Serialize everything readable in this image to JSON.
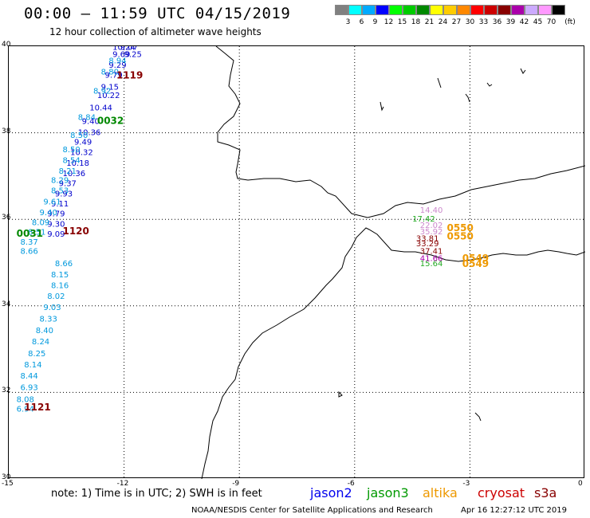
{
  "header": {
    "title": "00:00 – 11:59 UTC 04/15/2019",
    "subtitle": "12 hour collection of altimeter wave heights"
  },
  "color_scale": {
    "unit": "(ft)",
    "bins": [
      {
        "label": "3",
        "color": "#808080"
      },
      {
        "label": "6",
        "color": "#00ffff"
      },
      {
        "label": "9",
        "color": "#00aaff"
      },
      {
        "label": "12",
        "color": "#0000ff"
      },
      {
        "label": "15",
        "color": "#00ff00"
      },
      {
        "label": "18",
        "color": "#00cc00"
      },
      {
        "label": "21",
        "color": "#008800"
      },
      {
        "label": "24",
        "color": "#ffff00"
      },
      {
        "label": "27",
        "color": "#ffcc00"
      },
      {
        "label": "30",
        "color": "#ff8800"
      },
      {
        "label": "33",
        "color": "#ff0000"
      },
      {
        "label": "36",
        "color": "#cc0000"
      },
      {
        "label": "39",
        "color": "#880000"
      },
      {
        "label": "42",
        "color": "#aa00aa"
      },
      {
        "label": "45",
        "color": "#ccaaff"
      },
      {
        "label": "70",
        "color": "#ff99ff"
      },
      {
        "label": "",
        "color": "#000000"
      }
    ]
  },
  "map": {
    "lon_range": [
      -15,
      0
    ],
    "lat_range": [
      30,
      40
    ],
    "x_ticks": [
      "-15",
      "-12",
      "-9",
      "-6",
      "-3",
      "0"
    ],
    "y_ticks": [
      "40",
      "38",
      "36",
      "34",
      "32",
      "30"
    ]
  },
  "tracks": [
    {
      "satellite": "jason2",
      "color": "#0000cc",
      "points": [
        {
          "lon": -12.3,
          "lat": 39.92,
          "v": "10.24"
        },
        {
          "lon": -12.1,
          "lat": 39.92,
          "v": "9.07"
        },
        {
          "lon": -12.3,
          "lat": 39.75,
          "v": "9.69"
        },
        {
          "lon": -12.0,
          "lat": 39.75,
          "v": "9.25"
        },
        {
          "lon": -12.4,
          "lat": 39.5,
          "v": "9.29"
        },
        {
          "lon": -12.5,
          "lat": 39.27,
          "v": "9.79"
        },
        {
          "lon": -12.6,
          "lat": 39.0,
          "v": "9.15"
        },
        {
          "lon": -12.7,
          "lat": 38.8,
          "v": "10.22"
        },
        {
          "lon": -12.9,
          "lat": 38.52,
          "v": "10.44"
        },
        {
          "lon": -13.1,
          "lat": 38.2,
          "v": "9.40"
        },
        {
          "lon": -13.2,
          "lat": 37.95,
          "v": "10.36"
        },
        {
          "lon": -13.3,
          "lat": 37.73,
          "v": "9.49"
        },
        {
          "lon": -13.4,
          "lat": 37.49,
          "v": "10.32"
        },
        {
          "lon": -13.5,
          "lat": 37.24,
          "v": "10.18"
        },
        {
          "lon": -13.6,
          "lat": 37.0,
          "v": "10.36"
        },
        {
          "lon": -13.7,
          "lat": 36.77,
          "v": "9.37"
        },
        {
          "lon": -13.8,
          "lat": 36.53,
          "v": "9.93"
        },
        {
          "lon": -13.9,
          "lat": 36.3,
          "v": "9.11"
        },
        {
          "lon": -14.0,
          "lat": 36.07,
          "v": "9.79"
        },
        {
          "lon": -14.0,
          "lat": 35.83,
          "v": "9.30"
        },
        {
          "lon": -14.0,
          "lat": 35.6,
          "v": "9.09"
        }
      ]
    },
    {
      "satellite": "jason3",
      "color": "#0099dd",
      "points": [
        {
          "lon": -12.4,
          "lat": 39.6,
          "v": "8.94"
        },
        {
          "lon": -12.6,
          "lat": 39.35,
          "v": "8.80"
        },
        {
          "lon": -12.8,
          "lat": 38.9,
          "v": "8.92"
        },
        {
          "lon": -13.2,
          "lat": 38.3,
          "v": "8.84"
        },
        {
          "lon": -13.4,
          "lat": 37.88,
          "v": "8.50"
        },
        {
          "lon": -13.6,
          "lat": 37.55,
          "v": "8.50"
        },
        {
          "lon": -13.6,
          "lat": 37.3,
          "v": "8.54"
        },
        {
          "lon": -13.7,
          "lat": 37.05,
          "v": "8.21"
        },
        {
          "lon": -13.9,
          "lat": 36.84,
          "v": "8.29"
        },
        {
          "lon": -13.9,
          "lat": 36.6,
          "v": "8.53"
        },
        {
          "lon": -14.1,
          "lat": 36.34,
          "v": "9.61"
        },
        {
          "lon": -14.2,
          "lat": 36.1,
          "v": "9.40"
        },
        {
          "lon": -14.4,
          "lat": 35.87,
          "v": "8.09"
        },
        {
          "lon": -14.5,
          "lat": 35.64,
          "v": "8.51"
        },
        {
          "lon": -14.7,
          "lat": 35.41,
          "v": "8.37"
        },
        {
          "lon": -14.7,
          "lat": 35.2,
          "v": "8.66"
        },
        {
          "lon": -13.8,
          "lat": 34.92,
          "v": "8.66"
        },
        {
          "lon": -13.9,
          "lat": 34.66,
          "v": "8.15"
        },
        {
          "lon": -13.9,
          "lat": 34.41,
          "v": "8.16"
        },
        {
          "lon": -14.0,
          "lat": 34.16,
          "v": "8.02"
        },
        {
          "lon": -14.1,
          "lat": 33.9,
          "v": "9.03"
        },
        {
          "lon": -14.2,
          "lat": 33.64,
          "v": "8.33"
        },
        {
          "lon": -14.3,
          "lat": 33.37,
          "v": "8.40"
        },
        {
          "lon": -14.4,
          "lat": 33.11,
          "v": "8.24"
        },
        {
          "lon": -14.5,
          "lat": 32.84,
          "v": "8.25"
        },
        {
          "lon": -14.6,
          "lat": 32.58,
          "v": "8.14"
        },
        {
          "lon": -14.7,
          "lat": 32.32,
          "v": "8.44"
        },
        {
          "lon": -14.7,
          "lat": 32.05,
          "v": "6.93"
        },
        {
          "lon": -14.8,
          "lat": 31.78,
          "v": "8.08"
        },
        {
          "lon": -14.8,
          "lat": 31.56,
          "v": "6.94"
        }
      ]
    },
    {
      "satellite": "med",
      "color": "#22aa22",
      "points": [
        {
          "lon": -4.5,
          "lat": 35.95,
          "v": "17.42"
        },
        {
          "lon": -4.3,
          "lat": 34.92,
          "v": "15.64"
        }
      ]
    },
    {
      "satellite": "med2",
      "color": "#cc88cc",
      "points": [
        {
          "lon": -4.3,
          "lat": 36.15,
          "v": "14.40"
        },
        {
          "lon": -4.3,
          "lat": 35.8,
          "v": "22.02"
        },
        {
          "lon": -4.3,
          "lat": 35.65,
          "v": "35.92"
        }
      ]
    },
    {
      "satellite": "med3",
      "color": "#880000",
      "points": [
        {
          "lon": -4.4,
          "lat": 35.5,
          "v": "33.81"
        },
        {
          "lon": -4.4,
          "lat": 35.38,
          "v": "33.29"
        },
        {
          "lon": -4.3,
          "lat": 35.2,
          "v": "37.41"
        }
      ]
    },
    {
      "satellite": "med4",
      "color": "#aa00aa",
      "points": [
        {
          "lon": -4.3,
          "lat": 35.04,
          "v": "41.66"
        }
      ]
    }
  ],
  "time_labels": [
    {
      "lon": -12.2,
      "lat": 39.25,
      "v": "1119",
      "color": "#880000"
    },
    {
      "lon": -12.7,
      "lat": 38.2,
      "v": "0032",
      "color": "#008800"
    },
    {
      "lon": -13.6,
      "lat": 35.65,
      "v": "1120",
      "color": "#880000"
    },
    {
      "lon": -14.8,
      "lat": 35.6,
      "v": "0031",
      "color": "#008800"
    },
    {
      "lon": -14.6,
      "lat": 31.58,
      "v": "1121",
      "color": "#880000"
    },
    {
      "lon": -3.6,
      "lat": 35.73,
      "v": "0550",
      "color": "#ee9900"
    },
    {
      "lon": -3.6,
      "lat": 35.53,
      "v": "0550",
      "color": "#ee9900"
    },
    {
      "lon": -3.2,
      "lat": 35.03,
      "v": "0549",
      "color": "#ee9900"
    },
    {
      "lon": -3.2,
      "lat": 34.9,
      "v": "0549",
      "color": "#ee9900"
    }
  ],
  "footer": {
    "note": "note: 1) Time is in UTC; 2) SWH is in feet",
    "legend": [
      {
        "name": "jason2",
        "color": "#0000ee"
      },
      {
        "name": "jason3",
        "color": "#009900"
      },
      {
        "name": "altika",
        "color": "#ee9900"
      },
      {
        "name": "cryosat",
        "color": "#cc0000"
      },
      {
        "name": "s3a",
        "color": "#880000"
      }
    ],
    "credit": "NOAA/NESDIS Center for Satellite Applications and Research",
    "stamp": "Apr 16 12:27:12 UTC 2019"
  }
}
